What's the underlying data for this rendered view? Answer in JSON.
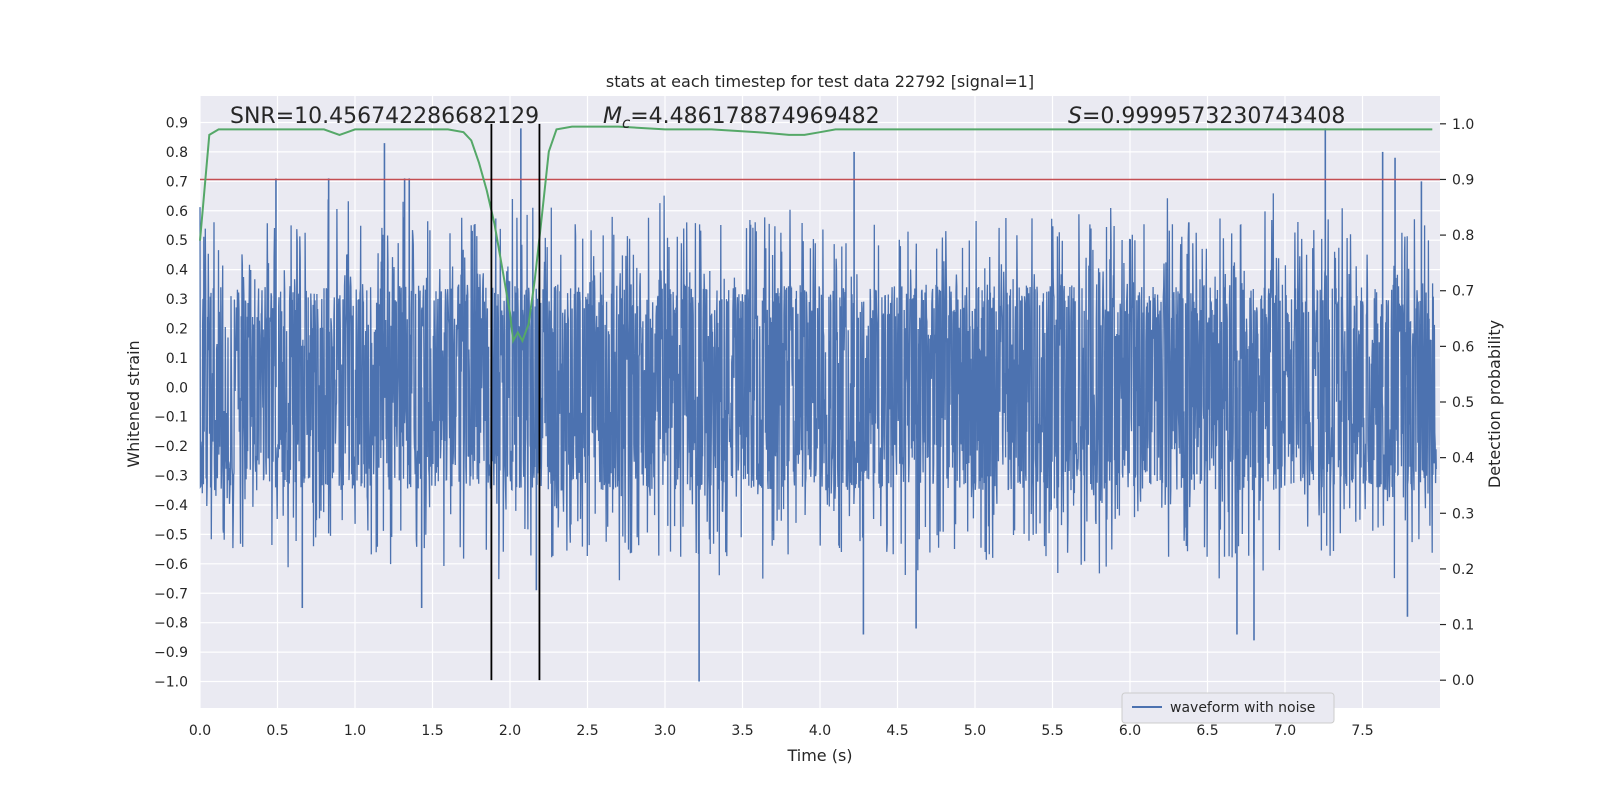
{
  "chart_data": {
    "type": "line",
    "title": "stats at each timestep for test data 22792 [signal=1]",
    "xlabel": "Time (s)",
    "ylabel": "Whitened strain",
    "y2label": "Detection probability",
    "xlim": [
      0.0,
      8.0
    ],
    "ylim": [
      -1.09,
      0.99
    ],
    "y2lim": [
      -0.05,
      1.05
    ],
    "xticks": [
      0.0,
      0.5,
      1.0,
      1.5,
      2.0,
      2.5,
      3.0,
      3.5,
      4.0,
      4.5,
      5.0,
      5.5,
      6.0,
      6.5,
      7.0,
      7.5
    ],
    "xtick_labels": [
      "0.0",
      "0.5",
      "1.0",
      "1.5",
      "2.0",
      "2.5",
      "3.0",
      "3.5",
      "4.0",
      "4.5",
      "5.0",
      "5.5",
      "6.0",
      "6.5",
      "7.0",
      "7.5"
    ],
    "yticks": [
      0.9,
      0.8,
      0.7,
      0.6,
      0.5,
      0.4,
      0.3,
      0.2,
      0.1,
      0.0,
      -0.1,
      -0.2,
      -0.3,
      -0.4,
      -0.5,
      -0.6,
      -0.7,
      -0.8,
      -0.9,
      -1.0
    ],
    "ytick_labels": [
      "0.9",
      "0.8",
      "0.7",
      "0.6",
      "0.5",
      "0.4",
      "0.3",
      "0.2",
      "0.1",
      "0.0",
      "−0.1",
      "−0.2",
      "−0.3",
      "−0.4",
      "−0.5",
      "−0.6",
      "−0.7",
      "−0.8",
      "−0.9",
      "−1.0"
    ],
    "y2ticks": [
      1.0,
      0.9,
      0.8,
      0.7,
      0.6,
      0.5,
      0.4,
      0.3,
      0.2,
      0.1,
      0.0
    ],
    "y2tick_labels": [
      "1.0",
      "0.9",
      "0.8",
      "0.7",
      "0.6",
      "0.5",
      "0.4",
      "0.3",
      "0.2",
      "0.1",
      "0.0"
    ],
    "annotations": {
      "snr": "SNR=10.456742286682129",
      "mc_value": "=4.486178874969482",
      "s_value": "=0.9999573230743408"
    },
    "threshold_y2": 0.9,
    "vlines_x": [
      1.88,
      2.19
    ],
    "detection_probability": {
      "x": [
        0.0,
        0.06,
        0.12,
        0.2,
        0.3,
        0.4,
        0.5,
        0.6,
        0.7,
        0.8,
        0.9,
        0.95,
        1.0,
        1.1,
        1.2,
        1.3,
        1.4,
        1.5,
        1.6,
        1.7,
        1.75,
        1.8,
        1.85,
        1.9,
        1.95,
        2.0,
        2.02,
        2.05,
        2.08,
        2.12,
        2.16,
        2.2,
        2.25,
        2.3,
        2.4,
        2.5,
        2.7,
        3.0,
        3.3,
        3.6,
        3.8,
        3.9,
        4.0,
        4.1,
        4.3,
        4.5,
        4.8,
        5.0,
        5.5,
        6.0,
        6.5,
        7.0,
        7.5,
        7.95
      ],
      "y": [
        0.79,
        0.98,
        0.99,
        0.99,
        0.99,
        0.99,
        0.99,
        0.99,
        0.99,
        0.99,
        0.98,
        0.985,
        0.99,
        0.99,
        0.99,
        0.99,
        0.99,
        0.99,
        0.99,
        0.985,
        0.97,
        0.93,
        0.88,
        0.82,
        0.74,
        0.66,
        0.61,
        0.625,
        0.61,
        0.64,
        0.72,
        0.82,
        0.95,
        0.99,
        0.995,
        0.995,
        0.995,
        0.99,
        0.99,
        0.985,
        0.98,
        0.98,
        0.985,
        0.99,
        0.99,
        0.99,
        0.99,
        0.99,
        0.99,
        0.99,
        0.99,
        0.99,
        0.99,
        0.99
      ]
    },
    "waveform": {
      "name": "waveform with noise",
      "dt": 0.00244,
      "n": 3270,
      "core_amplitude": 0.35,
      "spikes": [
        {
          "x": 0.49,
          "y": 0.71
        },
        {
          "x": 0.66,
          "y": -0.75
        },
        {
          "x": 0.83,
          "y": 0.71
        },
        {
          "x": 1.19,
          "y": 0.83
        },
        {
          "x": 1.32,
          "y": 0.71
        },
        {
          "x": 1.35,
          "y": 0.71
        },
        {
          "x": 1.43,
          "y": -0.75
        },
        {
          "x": 2.07,
          "y": 0.88
        },
        {
          "x": 2.17,
          "y": -0.69
        },
        {
          "x": 3.22,
          "y": -1.0
        },
        {
          "x": 4.22,
          "y": 0.8
        },
        {
          "x": 4.28,
          "y": -0.84
        },
        {
          "x": 4.62,
          "y": -0.82
        },
        {
          "x": 6.69,
          "y": -0.84
        },
        {
          "x": 6.8,
          "y": -0.86
        },
        {
          "x": 7.26,
          "y": 0.88
        },
        {
          "x": 7.63,
          "y": 0.8
        },
        {
          "x": 7.71,
          "y": 0.78
        },
        {
          "x": 7.79,
          "y": -0.78
        },
        {
          "x": 7.88,
          "y": 0.7
        }
      ]
    },
    "legend": {
      "label": "waveform with noise",
      "placement": "bottom-right"
    },
    "grid": true,
    "colors": {
      "waveform": "#4c72b0",
      "probability": "#55a868",
      "threshold": "#c44e52",
      "vline": "#000000",
      "background": "#eaeaf2",
      "grid": "#ffffff"
    }
  }
}
